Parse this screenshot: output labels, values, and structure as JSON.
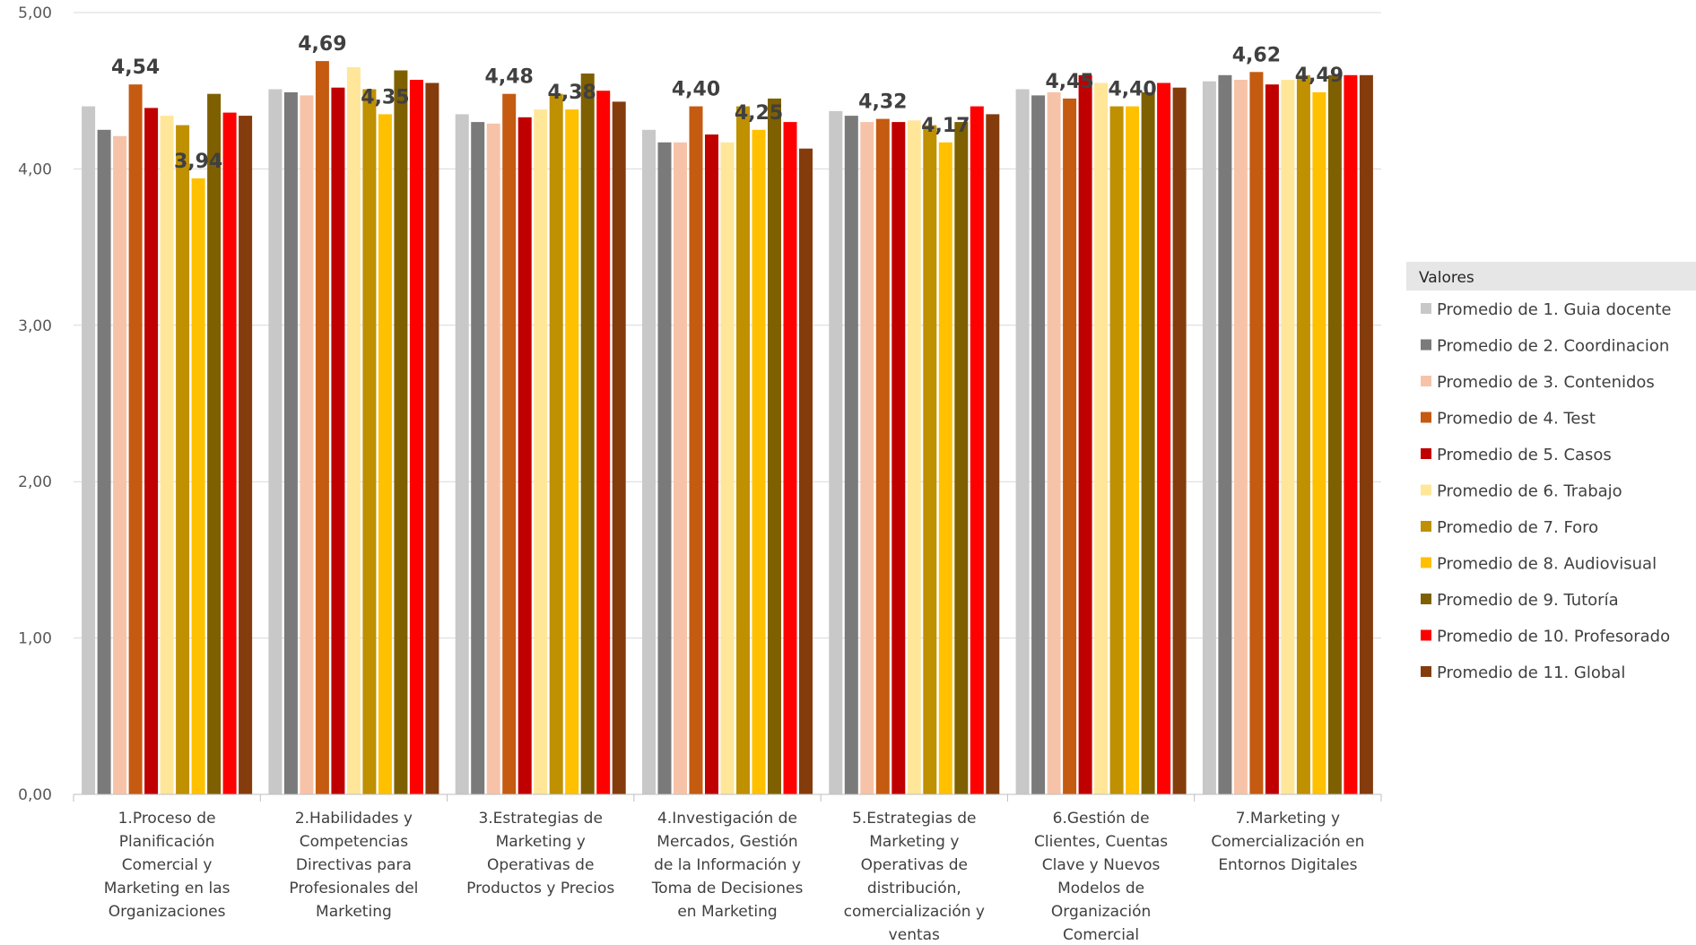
{
  "chart_data": {
    "type": "bar",
    "title": "",
    "xlabel": "",
    "ylabel": "",
    "ylim": [
      0,
      5
    ],
    "y_ticks": [
      "0,00",
      "1,00",
      "2,00",
      "3,00",
      "4,00",
      "5,00"
    ],
    "grid": true,
    "legend": {
      "title": "Valores",
      "position": "right"
    },
    "categories": [
      [
        "1.Proceso de",
        "Planificación",
        "Comercial y",
        "Marketing en las",
        "Organizaciones"
      ],
      [
        "2.Habilidades y",
        "Competencias",
        "Directivas para",
        "Profesionales del",
        "Marketing"
      ],
      [
        "3.Estrategias de",
        "Marketing y",
        "Operativas de",
        "Productos y Precios"
      ],
      [
        "4.Investigación de",
        "Mercados, Gestión",
        "de la Información y",
        "Toma de Decisiones",
        "en Marketing"
      ],
      [
        "5.Estrategias de",
        "Marketing y",
        "Operativas de",
        "distribución,",
        "comercialización y",
        "ventas"
      ],
      [
        "6.Gestión de",
        "Clientes, Cuentas",
        "Clave y Nuevos",
        "Modelos de",
        "Organización",
        "Comercial"
      ],
      [
        "7.Marketing y",
        "Comercialización en",
        "Entornos Digitales"
      ]
    ],
    "series": [
      {
        "name": "Promedio de 1. Guia docente",
        "color": "#c8c8c8",
        "values": [
          4.4,
          4.51,
          4.35,
          4.25,
          4.37,
          4.51,
          4.56
        ]
      },
      {
        "name": "Promedio de 2. Coordinacion",
        "color": "#7a7a7a",
        "values": [
          4.25,
          4.49,
          4.3,
          4.17,
          4.34,
          4.47,
          4.6
        ]
      },
      {
        "name": "Promedio de 3. Contenidos",
        "color": "#f7c3a8",
        "values": [
          4.21,
          4.47,
          4.29,
          4.17,
          4.3,
          4.49,
          4.57
        ]
      },
      {
        "name": "Promedio de 4. Test",
        "color": "#c55a11",
        "values": [
          4.54,
          4.69,
          4.48,
          4.4,
          4.32,
          4.45,
          4.62
        ]
      },
      {
        "name": "Promedio de 5. Casos",
        "color": "#c00000",
        "values": [
          4.39,
          4.52,
          4.33,
          4.22,
          4.3,
          4.6,
          4.54
        ]
      },
      {
        "name": "Promedio de 6. Trabajo",
        "color": "#ffe699",
        "values": [
          4.34,
          4.65,
          4.38,
          4.17,
          4.31,
          4.55,
          4.57
        ]
      },
      {
        "name": "Promedio de 7. Foro",
        "color": "#bf9000",
        "values": [
          4.28,
          4.51,
          4.48,
          4.4,
          4.28,
          4.4,
          4.6
        ]
      },
      {
        "name": "Promedio de 8. Audiovisual",
        "color": "#ffc000",
        "values": [
          3.94,
          4.35,
          4.38,
          4.25,
          4.17,
          4.4,
          4.49
        ]
      },
      {
        "name": "Promedio de 9. Tutoría",
        "color": "#7f6000",
        "values": [
          4.48,
          4.63,
          4.61,
          4.45,
          4.3,
          4.49,
          4.6
        ]
      },
      {
        "name": "Promedio de 10. Profesorado",
        "color": "#ff0000",
        "values": [
          4.36,
          4.57,
          4.5,
          4.3,
          4.4,
          4.55,
          4.6
        ]
      },
      {
        "name": "Promedio de 11. Global",
        "color": "#843c0c",
        "values": [
          4.34,
          4.55,
          4.43,
          4.13,
          4.35,
          4.52,
          4.6
        ]
      }
    ],
    "data_labels": [
      [
        {
          "series": 3,
          "text": "4,54"
        },
        {
          "series": 7,
          "text": "3,94"
        }
      ],
      [
        {
          "series": 3,
          "text": "4,69"
        },
        {
          "series": 7,
          "text": "4,35"
        }
      ],
      [
        {
          "series": 3,
          "text": "4,48"
        },
        {
          "series": 7,
          "text": "4,38"
        }
      ],
      [
        {
          "series": 3,
          "text": "4,40"
        },
        {
          "series": 7,
          "text": "4,25"
        }
      ],
      [
        {
          "series": 3,
          "text": "4,32"
        },
        {
          "series": 7,
          "text": "4,17"
        }
      ],
      [
        {
          "series": 3,
          "text": "4,45"
        },
        {
          "series": 7,
          "text": "4,40"
        }
      ],
      [
        {
          "series": 3,
          "text": "4,62"
        },
        {
          "series": 7,
          "text": "4,49"
        }
      ]
    ]
  }
}
